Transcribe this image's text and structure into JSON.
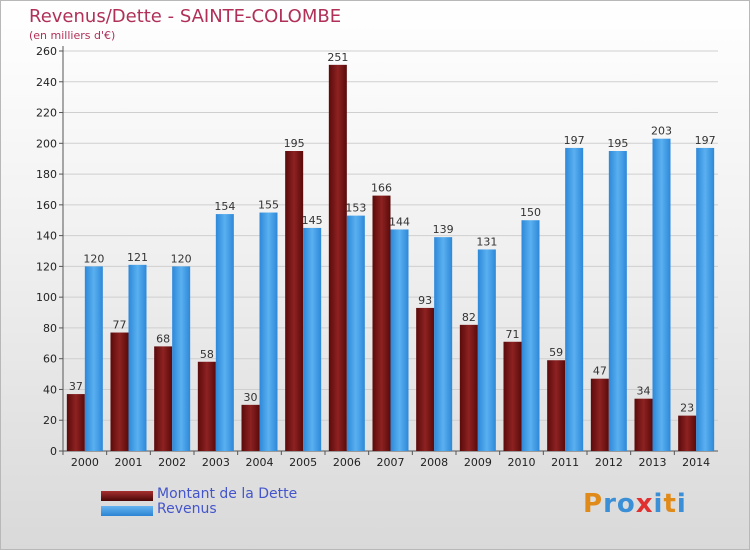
{
  "chart_data": {
    "type": "bar",
    "title": "Revenus/Dette - SAINTE-COLOMBE",
    "subtitle": "(en milliers d'€)",
    "categories": [
      "2000",
      "2001",
      "2002",
      "2003",
      "2004",
      "2005",
      "2006",
      "2007",
      "2008",
      "2009",
      "2010",
      "2011",
      "2012",
      "2013",
      "2014"
    ],
    "series": [
      {
        "name": "Montant de la Dette",
        "color": "#7a1414",
        "values": [
          37,
          77,
          68,
          58,
          30,
          195,
          251,
          166,
          93,
          82,
          71,
          59,
          47,
          34,
          23
        ]
      },
      {
        "name": "Revenus",
        "color": "#3d97e0",
        "values": [
          120,
          121,
          120,
          154,
          155,
          145,
          153,
          144,
          139,
          131,
          150,
          197,
          195,
          203,
          197
        ]
      }
    ],
    "ylim": [
      0,
      260
    ],
    "yticks": [
      0,
      20,
      40,
      60,
      80,
      100,
      120,
      140,
      160,
      180,
      200,
      220,
      240,
      260
    ],
    "grid": true,
    "legend_position": "bottom-left"
  },
  "logo": {
    "text": "Proxiti",
    "colors": [
      "#e08a1a",
      "#3a8fd6",
      "#3a8fd6",
      "#e03030",
      "#3a8fd6",
      "#e08a1a",
      "#3a8fd6"
    ]
  }
}
